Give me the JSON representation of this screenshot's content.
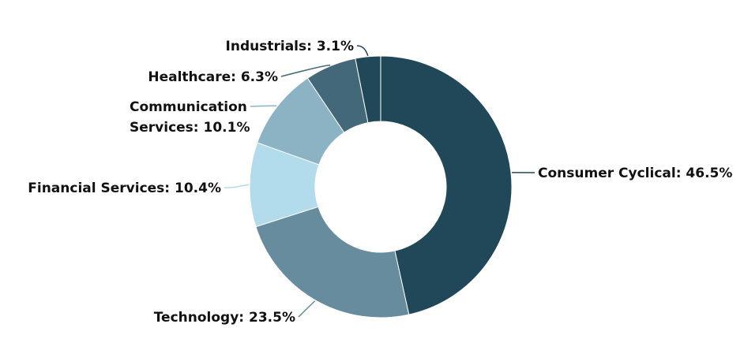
{
  "chart_data": {
    "type": "pie",
    "variant": "donut",
    "title": "",
    "legend": "none",
    "slices": [
      {
        "label": "Consumer Cyclical",
        "value": 46.5,
        "text": "Consumer Cyclical: 46.5%",
        "color": "#214858"
      },
      {
        "label": "Technology",
        "value": 23.5,
        "text": "Technology: 23.5%",
        "color": "#668c9d"
      },
      {
        "label": "Financial Services",
        "value": 10.4,
        "text": "Financial Services: 10.4%",
        "color": "#b2dceb"
      },
      {
        "label": "Communication Services",
        "value": 10.1,
        "lines": [
          "Communication",
          "Services: 10.1%"
        ],
        "color": "#8bb3c4"
      },
      {
        "label": "Healthcare",
        "value": 6.3,
        "text": "Healthcare: 6.3%",
        "color": "#436879"
      },
      {
        "label": "Industrials",
        "value": 3.1,
        "text": "Industrials: 3.1%",
        "color": "#214858"
      }
    ]
  }
}
